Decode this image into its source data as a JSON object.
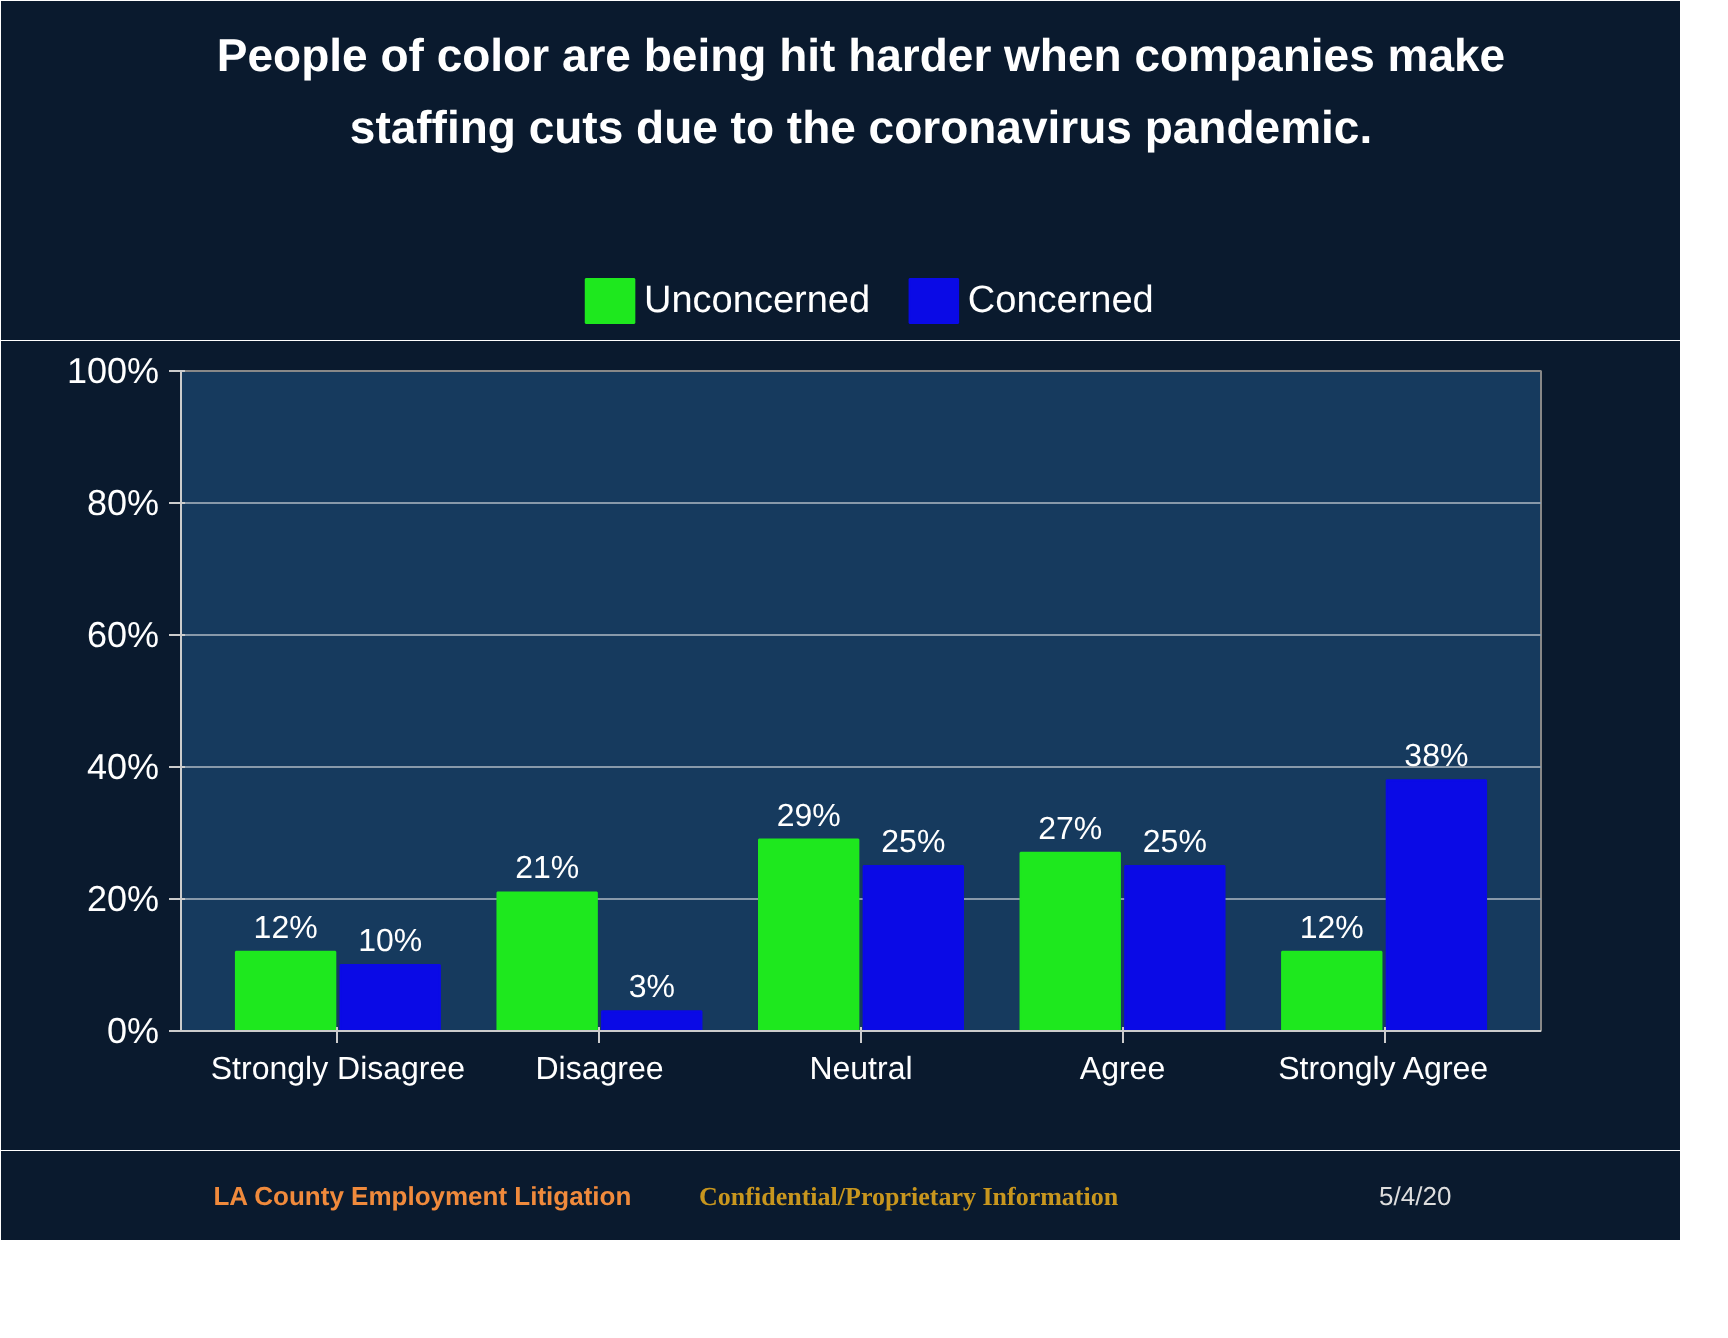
{
  "chart_data": {
    "type": "bar",
    "title": "People of color are being hit harder when companies make staffing cuts due to the coronavirus pandemic.",
    "categories": [
      "Strongly Disagree",
      "Disagree",
      "Neutral",
      "Agree",
      "Strongly Agree"
    ],
    "series": [
      {
        "name": "Unconcerned",
        "color": "#1ee81e",
        "values": [
          12,
          21,
          29,
          27,
          12
        ],
        "value_labels": [
          "12%",
          "21%",
          "29%",
          "27%",
          "12%"
        ]
      },
      {
        "name": "Concerned",
        "color": "#0a0ae6",
        "values": [
          10,
          3,
          25,
          25,
          38
        ],
        "value_labels": [
          "10%",
          "3%",
          "25%",
          "25%",
          "38%"
        ]
      }
    ],
    "ylim": [
      0,
      100
    ],
    "yticks": [
      {
        "value": 0,
        "label": "0%"
      },
      {
        "value": 20,
        "label": "20%"
      },
      {
        "value": 40,
        "label": "40%"
      },
      {
        "value": 60,
        "label": "60%"
      },
      {
        "value": 80,
        "label": "80%"
      },
      {
        "value": 100,
        "label": "100%"
      }
    ],
    "grid": "y",
    "legend": "top",
    "annotations": [
      "LA County Employment Litigation",
      "Confidential/Proprietary Information",
      "5/4/20"
    ]
  }
}
